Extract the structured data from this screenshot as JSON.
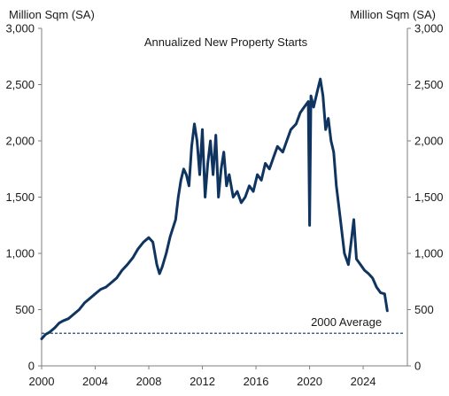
{
  "chart_data": {
    "type": "line",
    "title": "Annualized New Property Starts",
    "ylabel_left": "Million Sqm (SA)",
    "ylabel_right": "Million Sqm (SA)",
    "xlim": [
      2000,
      2027.3
    ],
    "ylim": [
      0,
      3000
    ],
    "x_ticks": [
      "2000",
      "2004",
      "2008",
      "2012",
      "2016",
      "2020",
      "2024"
    ],
    "y_ticks": [
      "0",
      "500",
      "1,000",
      "1,500",
      "2,000",
      "2,500",
      "3,000"
    ],
    "y_tick_values": [
      0,
      500,
      1000,
      1500,
      2000,
      2500,
      3000
    ],
    "x_tick_values": [
      2000,
      2004,
      2008,
      2012,
      2016,
      2020,
      2024
    ],
    "line_color": "#0f3460",
    "average": {
      "label": "2000 Average",
      "value": 290,
      "color": "#0f3460"
    },
    "series": [
      {
        "x": [
          2000.0,
          2000.3,
          2000.6,
          2001.0,
          2001.3,
          2001.6,
          2002.0,
          2002.4,
          2002.8,
          2003.2,
          2003.6,
          2004.0,
          2004.4,
          2004.8,
          2005.2,
          2005.6,
          2006.0,
          2006.4,
          2006.8,
          2007.2,
          2007.6,
          2008.0,
          2008.3,
          2008.6,
          2008.8,
          2009.0,
          2009.3,
          2009.6,
          2010.0,
          2010.2,
          2010.4,
          2010.6,
          2010.8,
          2011.0,
          2011.2,
          2011.4,
          2011.6,
          2011.8,
          2012.0,
          2012.2,
          2012.4,
          2012.6,
          2012.8,
          2013.0,
          2013.2,
          2013.4,
          2013.6,
          2013.8,
          2014.0,
          2014.3,
          2014.6,
          2014.9,
          2015.2,
          2015.5,
          2015.8,
          2016.1,
          2016.4,
          2016.7,
          2017.0,
          2017.3,
          2017.6,
          2018.0,
          2018.3,
          2018.6,
          2019.0,
          2019.3,
          2019.6,
          2019.9,
          2020.0,
          2020.1,
          2020.3,
          2020.6,
          2020.8,
          2021.0,
          2021.2,
          2021.4,
          2021.6,
          2021.8,
          2022.0,
          2022.3,
          2022.6,
          2022.9,
          2023.1,
          2023.3,
          2023.5,
          2023.8,
          2024.1,
          2024.4,
          2024.7,
          2025.0,
          2025.3,
          2025.6,
          2025.8
        ],
        "y": [
          240,
          280,
          300,
          340,
          380,
          400,
          420,
          460,
          500,
          560,
          600,
          640,
          680,
          700,
          740,
          780,
          850,
          900,
          960,
          1040,
          1100,
          1140,
          1100,
          900,
          820,
          880,
          1000,
          1150,
          1300,
          1500,
          1650,
          1750,
          1700,
          1600,
          1950,
          2150,
          2000,
          1700,
          2100,
          1500,
          1800,
          2000,
          1700,
          2050,
          1500,
          1750,
          1900,
          1600,
          1700,
          1500,
          1550,
          1450,
          1500,
          1600,
          1550,
          1700,
          1650,
          1800,
          1750,
          1850,
          1950,
          1900,
          2000,
          2100,
          2150,
          2250,
          2300,
          2350,
          1250,
          2400,
          2300,
          2450,
          2550,
          2400,
          2100,
          2200,
          2000,
          1900,
          1600,
          1300,
          1000,
          900,
          1100,
          1300,
          950,
          900,
          850,
          820,
          780,
          700,
          650,
          640,
          490
        ]
      }
    ]
  }
}
